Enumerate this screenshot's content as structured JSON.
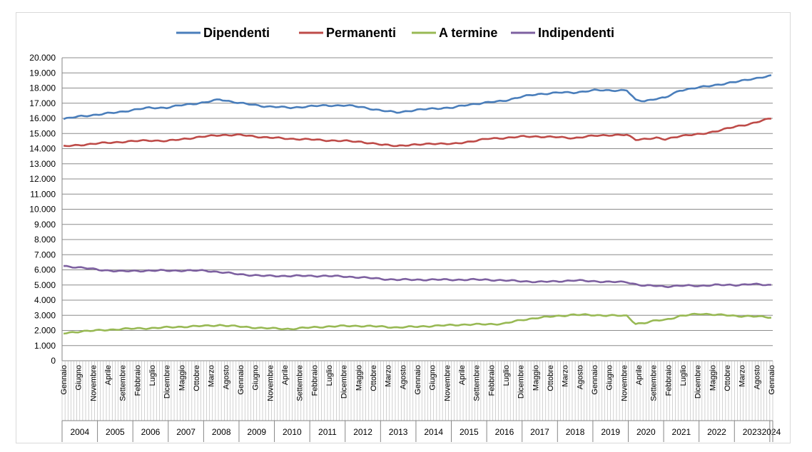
{
  "chart_data": {
    "type": "line",
    "title": "",
    "xlabel": "",
    "ylabel": "",
    "ylim": [
      0,
      20000
    ],
    "y_tick_step": 1000,
    "y_tick_labels": [
      "0",
      "1.000",
      "2.000",
      "3.000",
      "4.000",
      "5.000",
      "6.000",
      "7.000",
      "8.000",
      "9.000",
      "10.000",
      "11.000",
      "12.000",
      "13.000",
      "14.000",
      "15.000",
      "16.000",
      "17.000",
      "18.000",
      "19.000",
      "20.000"
    ],
    "grid": "horizontal",
    "legend": "top",
    "x_start": "2004-01",
    "x_end": "2024-01",
    "x_labels": [
      "Gennaio",
      "Giugno",
      "Novembre",
      "Aprile",
      "Settembre",
      "Febbraio",
      "Luglio",
      "Dicembre",
      "Maggio",
      "Ottobre",
      "Marzo",
      "Agosto",
      "Gennaio",
      "Giugno",
      "Novembre",
      "Aprile",
      "Settembre",
      "Febbraio",
      "Luglio",
      "Dicembre",
      "Maggio",
      "Ottobre",
      "Marzo",
      "Agosto",
      "Gennaio",
      "Giugno",
      "Novembre",
      "Aprile",
      "Settembre",
      "Febbraio",
      "Luglio",
      "Dicembre",
      "Maggio",
      "Ottobre",
      "Marzo",
      "Agosto",
      "Gennaio",
      "Giugno",
      "Novembre",
      "Aprile",
      "Settembre",
      "Febbraio",
      "Luglio",
      "Dicembre",
      "Maggio",
      "Ottobre",
      "Marzo",
      "Agosto",
      "Gennaio"
    ],
    "years": [
      "2004",
      "2005",
      "2006",
      "2007",
      "2008",
      "2009",
      "2010",
      "2011",
      "2012",
      "2013",
      "2014",
      "2015",
      "2016",
      "2017",
      "2018",
      "2019",
      "2020",
      "2021",
      "2022",
      "2023",
      "2024"
    ],
    "series": [
      {
        "name": "Dipendenti",
        "color": "#4a7ebb",
        "keyframes": [
          [
            "2004-01",
            15950
          ],
          [
            "2004-07",
            16150
          ],
          [
            "2005-01",
            16250
          ],
          [
            "2005-09",
            16450
          ],
          [
            "2006-06",
            16700
          ],
          [
            "2006-12",
            16700
          ],
          [
            "2007-06",
            16900
          ],
          [
            "2008-01",
            17050
          ],
          [
            "2008-06",
            17250
          ],
          [
            "2009-01",
            17000
          ],
          [
            "2009-09",
            16800
          ],
          [
            "2010-06",
            16700
          ],
          [
            "2011-01",
            16800
          ],
          [
            "2011-06",
            16850
          ],
          [
            "2012-01",
            16850
          ],
          [
            "2012-06",
            16750
          ],
          [
            "2013-01",
            16500
          ],
          [
            "2013-06",
            16400
          ],
          [
            "2014-01",
            16550
          ],
          [
            "2014-06",
            16650
          ],
          [
            "2015-01",
            16700
          ],
          [
            "2015-06",
            16900
          ],
          [
            "2016-01",
            17050
          ],
          [
            "2016-06",
            17150
          ],
          [
            "2017-01",
            17450
          ],
          [
            "2017-06",
            17600
          ],
          [
            "2018-01",
            17700
          ],
          [
            "2018-06",
            17700
          ],
          [
            "2019-01",
            17850
          ],
          [
            "2019-06",
            17850
          ],
          [
            "2019-12",
            17850
          ],
          [
            "2020-03",
            17200
          ],
          [
            "2020-06",
            17150
          ],
          [
            "2020-10",
            17300
          ],
          [
            "2021-01",
            17350
          ],
          [
            "2021-06",
            17850
          ],
          [
            "2022-01",
            18050
          ],
          [
            "2022-06",
            18200
          ],
          [
            "2023-01",
            18400
          ],
          [
            "2023-06",
            18600
          ],
          [
            "2024-01",
            18800
          ]
        ]
      },
      {
        "name": "Permanenti",
        "color": "#be4b48",
        "keyframes": [
          [
            "2004-01",
            14150
          ],
          [
            "2004-07",
            14250
          ],
          [
            "2005-01",
            14350
          ],
          [
            "2005-09",
            14450
          ],
          [
            "2006-06",
            14550
          ],
          [
            "2006-12",
            14500
          ],
          [
            "2007-06",
            14650
          ],
          [
            "2008-01",
            14800
          ],
          [
            "2008-06",
            14900
          ],
          [
            "2009-01",
            14900
          ],
          [
            "2009-09",
            14750
          ],
          [
            "2010-06",
            14650
          ],
          [
            "2011-01",
            14600
          ],
          [
            "2011-06",
            14550
          ],
          [
            "2012-01",
            14500
          ],
          [
            "2012-06",
            14450
          ],
          [
            "2013-01",
            14250
          ],
          [
            "2013-06",
            14200
          ],
          [
            "2014-01",
            14250
          ],
          [
            "2014-06",
            14350
          ],
          [
            "2015-01",
            14300
          ],
          [
            "2015-06",
            14450
          ],
          [
            "2016-01",
            14650
          ],
          [
            "2016-06",
            14700
          ],
          [
            "2017-01",
            14800
          ],
          [
            "2017-06",
            14800
          ],
          [
            "2018-01",
            14750
          ],
          [
            "2018-06",
            14700
          ],
          [
            "2019-01",
            14850
          ],
          [
            "2019-06",
            14900
          ],
          [
            "2019-12",
            14900
          ],
          [
            "2020-03",
            14600
          ],
          [
            "2020-06",
            14650
          ],
          [
            "2020-10",
            14700
          ],
          [
            "2021-01",
            14600
          ],
          [
            "2021-06",
            14850
          ],
          [
            "2022-01",
            14950
          ],
          [
            "2022-06",
            15150
          ],
          [
            "2023-01",
            15450
          ],
          [
            "2023-06",
            15650
          ],
          [
            "2024-01",
            16000
          ]
        ]
      },
      {
        "name": "A termine",
        "color": "#98b954",
        "keyframes": [
          [
            "2004-01",
            1800
          ],
          [
            "2004-07",
            1950
          ],
          [
            "2005-01",
            2000
          ],
          [
            "2005-09",
            2100
          ],
          [
            "2006-06",
            2150
          ],
          [
            "2006-12",
            2200
          ],
          [
            "2007-06",
            2250
          ],
          [
            "2008-01",
            2300
          ],
          [
            "2008-06",
            2350
          ],
          [
            "2009-01",
            2250
          ],
          [
            "2009-09",
            2150
          ],
          [
            "2010-06",
            2100
          ],
          [
            "2011-01",
            2200
          ],
          [
            "2011-06",
            2250
          ],
          [
            "2012-01",
            2300
          ],
          [
            "2012-06",
            2300
          ],
          [
            "2013-01",
            2250
          ],
          [
            "2013-06",
            2200
          ],
          [
            "2014-01",
            2250
          ],
          [
            "2014-06",
            2300
          ],
          [
            "2015-01",
            2350
          ],
          [
            "2015-06",
            2400
          ],
          [
            "2016-01",
            2400
          ],
          [
            "2016-06",
            2450
          ],
          [
            "2017-01",
            2700
          ],
          [
            "2017-06",
            2850
          ],
          [
            "2018-01",
            2950
          ],
          [
            "2018-06",
            3050
          ],
          [
            "2019-01",
            3000
          ],
          [
            "2019-06",
            3000
          ],
          [
            "2019-12",
            2950
          ],
          [
            "2020-03",
            2450
          ],
          [
            "2020-06",
            2500
          ],
          [
            "2020-10",
            2650
          ],
          [
            "2021-01",
            2700
          ],
          [
            "2021-06",
            2950
          ],
          [
            "2022-01",
            3100
          ],
          [
            "2022-06",
            3050
          ],
          [
            "2023-01",
            2950
          ],
          [
            "2023-06",
            2950
          ],
          [
            "2024-01",
            2850
          ]
        ]
      },
      {
        "name": "Indipendenti",
        "color": "#7d60a0",
        "keyframes": [
          [
            "2004-01",
            6250
          ],
          [
            "2004-07",
            6150
          ],
          [
            "2005-01",
            6000
          ],
          [
            "2005-09",
            5900
          ],
          [
            "2006-06",
            5950
          ],
          [
            "2006-12",
            5950
          ],
          [
            "2007-06",
            5950
          ],
          [
            "2008-01",
            5950
          ],
          [
            "2008-06",
            5850
          ],
          [
            "2009-01",
            5700
          ],
          [
            "2009-09",
            5600
          ],
          [
            "2010-06",
            5600
          ],
          [
            "2011-01",
            5600
          ],
          [
            "2011-06",
            5600
          ],
          [
            "2012-01",
            5550
          ],
          [
            "2012-06",
            5500
          ],
          [
            "2013-01",
            5400
          ],
          [
            "2013-06",
            5350
          ],
          [
            "2014-01",
            5350
          ],
          [
            "2014-06",
            5350
          ],
          [
            "2015-01",
            5350
          ],
          [
            "2015-06",
            5350
          ],
          [
            "2016-01",
            5350
          ],
          [
            "2016-06",
            5300
          ],
          [
            "2017-01",
            5250
          ],
          [
            "2017-06",
            5200
          ],
          [
            "2018-01",
            5250
          ],
          [
            "2018-06",
            5300
          ],
          [
            "2019-01",
            5250
          ],
          [
            "2019-06",
            5200
          ],
          [
            "2019-12",
            5200
          ],
          [
            "2020-03",
            5050
          ],
          [
            "2020-06",
            4950
          ],
          [
            "2020-10",
            4950
          ],
          [
            "2021-01",
            4900
          ],
          [
            "2021-06",
            4950
          ],
          [
            "2022-01",
            4950
          ],
          [
            "2022-06",
            5000
          ],
          [
            "2023-01",
            5000
          ],
          [
            "2023-06",
            5050
          ],
          [
            "2024-01",
            5000
          ]
        ]
      }
    ]
  }
}
